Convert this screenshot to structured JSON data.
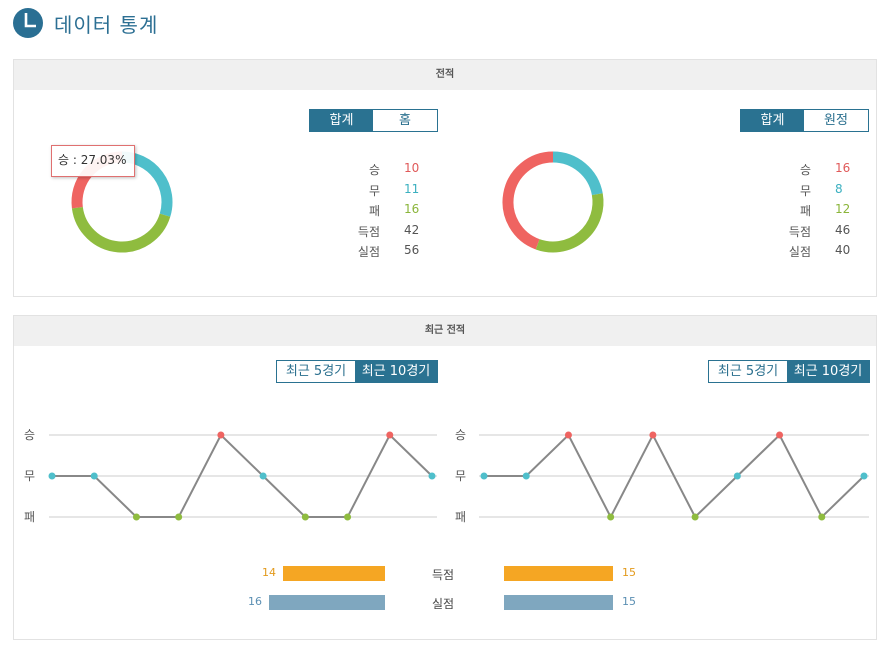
{
  "header": {
    "title": "데이터 통계",
    "icon": "pie-chart-icon"
  },
  "record": {
    "title": "전적",
    "left": {
      "toggle": [
        "합계",
        "홈"
      ],
      "active": 0,
      "stats": [
        {
          "label": "승",
          "value": "10",
          "color": "#e05a5a"
        },
        {
          "label": "무",
          "value": "11",
          "color": "#3bb0c0"
        },
        {
          "label": "패",
          "value": "16",
          "color": "#8bb53a"
        },
        {
          "label": "득점",
          "value": "42",
          "color": "#555555"
        },
        {
          "label": "실점",
          "value": "56",
          "color": "#555555"
        }
      ],
      "tooltip": "승 : 27.03%",
      "donut": [
        10,
        11,
        16
      ]
    },
    "right": {
      "toggle": [
        "합계",
        "원정"
      ],
      "active": 0,
      "stats": [
        {
          "label": "승",
          "value": "16",
          "color": "#e05a5a"
        },
        {
          "label": "무",
          "value": "8",
          "color": "#3bb0c0"
        },
        {
          "label": "패",
          "value": "12",
          "color": "#8bb53a"
        },
        {
          "label": "득점",
          "value": "46",
          "color": "#555555"
        },
        {
          "label": "실점",
          "value": "40",
          "color": "#555555"
        }
      ],
      "donut": [
        16,
        8,
        12
      ]
    },
    "colors": {
      "win": "#ef6461",
      "draw": "#4fbfcb",
      "loss": "#8fbc3f"
    }
  },
  "recent": {
    "title": "최근 전적",
    "toggle": [
      "최근 5경기",
      "최근 10경기"
    ],
    "active": 1,
    "y_labels": [
      "승",
      "무",
      "패"
    ],
    "left_results": [
      "무",
      "무",
      "패",
      "패",
      "승",
      "무",
      "패",
      "패",
      "승",
      "무"
    ],
    "right_results": [
      "무",
      "무",
      "승",
      "패",
      "승",
      "패",
      "무",
      "승",
      "패",
      "무"
    ],
    "bars": {
      "scored": {
        "label": "득점",
        "left": 14,
        "right": 15,
        "color": "#f5a623",
        "text_color": "#e39a1c"
      },
      "conceded": {
        "label": "실점",
        "left": 16,
        "right": 15,
        "color": "#7fa7bf",
        "text_color": "#5b8fb3"
      }
    }
  }
}
